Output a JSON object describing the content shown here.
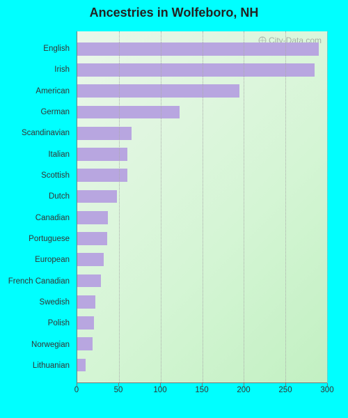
{
  "chart": {
    "type": "horizontal-bar",
    "title": "Ancestries in Wolfeboro, NH",
    "title_fontsize": 18,
    "watermark": "City-Data.com",
    "page_background": "#00ffff",
    "plot_background_gradient": [
      "#eaf7ea",
      "#d4f5d4",
      "#c2f0c2"
    ],
    "bar_color": "#b8a6e0",
    "grid_color": "#aaaaaa",
    "axis_color": "#777777",
    "label_color": "#333333",
    "label_fontsize": 11.5,
    "xlim": [
      0,
      300
    ],
    "xtick_step": 50,
    "xticks": [
      0,
      50,
      100,
      150,
      200,
      250,
      300
    ],
    "categories": [
      "English",
      "Irish",
      "American",
      "German",
      "Scandinavian",
      "Italian",
      "Scottish",
      "Dutch",
      "Canadian",
      "Portuguese",
      "European",
      "French Canadian",
      "Swedish",
      "Polish",
      "Norwegian",
      "Lithuanian"
    ],
    "values": [
      290,
      285,
      195,
      123,
      65,
      60,
      60,
      48,
      37,
      36,
      32,
      28,
      22,
      20,
      18,
      10
    ]
  }
}
